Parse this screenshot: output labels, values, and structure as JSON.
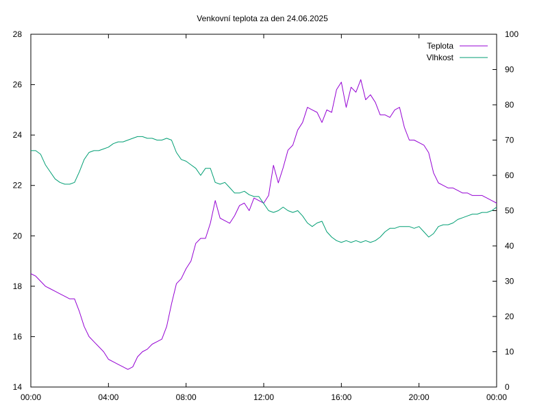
{
  "chart_data": {
    "type": "line",
    "title": "Venkovní teplota za den 24.06.2025",
    "x_ticks": [
      "00:00",
      "04:00",
      "08:00",
      "12:00",
      "16:00",
      "20:00",
      "00:00"
    ],
    "x_range_hours": [
      0,
      24
    ],
    "y_left": {
      "range": [
        14,
        28
      ],
      "ticks": [
        14,
        16,
        18,
        20,
        22,
        24,
        26,
        28
      ]
    },
    "y_right": {
      "range": [
        0,
        100
      ],
      "ticks": [
        0,
        10,
        20,
        30,
        40,
        50,
        60,
        70,
        80,
        90,
        100
      ]
    },
    "legend_position": "top-right",
    "grid": false,
    "series": [
      {
        "name": "Teplota",
        "axis": "left",
        "color": "#9400d3",
        "x": [
          0,
          0.25,
          0.5,
          0.75,
          1.0,
          1.25,
          1.5,
          1.75,
          2.0,
          2.25,
          2.5,
          2.75,
          3.0,
          3.25,
          3.5,
          3.75,
          4.0,
          4.25,
          4.5,
          4.75,
          5.0,
          5.25,
          5.5,
          5.75,
          6.0,
          6.25,
          6.5,
          6.75,
          7.0,
          7.25,
          7.5,
          7.75,
          8.0,
          8.25,
          8.5,
          8.75,
          9.0,
          9.25,
          9.5,
          9.75,
          10.0,
          10.25,
          10.5,
          10.75,
          11.0,
          11.25,
          11.5,
          11.75,
          12.0,
          12.25,
          12.5,
          12.75,
          13.0,
          13.25,
          13.5,
          13.75,
          14.0,
          14.25,
          14.5,
          14.75,
          15.0,
          15.25,
          15.5,
          15.75,
          16.0,
          16.25,
          16.5,
          16.75,
          17.0,
          17.25,
          17.5,
          17.75,
          18.0,
          18.25,
          18.5,
          18.75,
          19.0,
          19.25,
          19.5,
          19.75,
          20.0,
          20.25,
          20.5,
          20.75,
          21.0,
          21.25,
          21.5,
          21.75,
          22.0,
          22.25,
          22.5,
          22.75,
          23.0,
          23.25,
          23.5,
          23.75,
          24.0
        ],
        "values": [
          18.5,
          18.4,
          18.2,
          18.0,
          17.9,
          17.8,
          17.7,
          17.6,
          17.5,
          17.5,
          17.0,
          16.4,
          16.0,
          15.8,
          15.6,
          15.4,
          15.1,
          15.0,
          14.9,
          14.8,
          14.7,
          14.8,
          15.2,
          15.4,
          15.5,
          15.7,
          15.8,
          15.9,
          16.4,
          17.3,
          18.1,
          18.3,
          18.7,
          19.0,
          19.7,
          19.9,
          19.9,
          20.5,
          21.4,
          20.7,
          20.6,
          20.5,
          20.8,
          21.2,
          21.3,
          21.0,
          21.5,
          21.4,
          21.3,
          21.6,
          22.8,
          22.1,
          22.7,
          23.4,
          23.6,
          24.2,
          24.5,
          25.1,
          25.0,
          24.9,
          24.5,
          25.0,
          24.9,
          25.8,
          26.1,
          25.1,
          25.9,
          25.7,
          26.2,
          25.4,
          25.6,
          25.3,
          24.8,
          24.8,
          24.7,
          25.0,
          25.1,
          24.3,
          23.8,
          23.8,
          23.7,
          23.6,
          23.3,
          22.5,
          22.1,
          22.0,
          21.9,
          21.9,
          21.8,
          21.7,
          21.7,
          21.6,
          21.6,
          21.6,
          21.5,
          21.4,
          21.3
        ]
      },
      {
        "name": "Vlhkost",
        "axis": "right",
        "color": "#009e73",
        "x": [
          0,
          0.25,
          0.5,
          0.75,
          1.0,
          1.25,
          1.5,
          1.75,
          2.0,
          2.25,
          2.5,
          2.75,
          3.0,
          3.25,
          3.5,
          3.75,
          4.0,
          4.25,
          4.5,
          4.75,
          5.0,
          5.25,
          5.5,
          5.75,
          6.0,
          6.25,
          6.5,
          6.75,
          7.0,
          7.25,
          7.5,
          7.75,
          8.0,
          8.25,
          8.5,
          8.75,
          9.0,
          9.25,
          9.5,
          9.75,
          10.0,
          10.25,
          10.5,
          10.75,
          11.0,
          11.25,
          11.5,
          11.75,
          12.0,
          12.25,
          12.5,
          12.75,
          13.0,
          13.25,
          13.5,
          13.75,
          14.0,
          14.25,
          14.5,
          14.75,
          15.0,
          15.25,
          15.5,
          15.75,
          16.0,
          16.25,
          16.5,
          16.75,
          17.0,
          17.25,
          17.5,
          17.75,
          18.0,
          18.25,
          18.5,
          18.75,
          19.0,
          19.25,
          19.5,
          19.75,
          20.0,
          20.25,
          20.5,
          20.75,
          21.0,
          21.25,
          21.5,
          21.75,
          22.0,
          22.25,
          22.5,
          22.75,
          23.0,
          23.25,
          23.5,
          23.75,
          24.0
        ],
        "values": [
          67,
          67,
          66,
          63,
          61,
          59,
          58,
          57.5,
          57.5,
          58,
          61,
          64.5,
          66.5,
          67,
          67,
          67.5,
          68,
          69,
          69.5,
          69.5,
          70,
          70.5,
          71,
          71,
          70.5,
          70.5,
          70,
          70,
          70.5,
          70,
          66.5,
          64.5,
          64,
          63,
          62,
          60,
          62,
          62,
          58,
          57.5,
          58,
          56.5,
          55,
          55,
          55.5,
          54.5,
          54,
          54,
          52,
          50,
          49.5,
          50,
          51,
          50,
          49.5,
          50,
          48.5,
          46.5,
          45.5,
          46.5,
          47,
          44,
          42.5,
          41.5,
          41,
          41.5,
          41,
          41.5,
          41,
          41.5,
          41,
          41.5,
          42.5,
          44,
          45,
          45,
          45.5,
          45.5,
          45.5,
          45,
          45.5,
          44,
          42.5,
          43.5,
          45.5,
          46,
          46,
          46.5,
          47.5,
          48,
          48.5,
          49,
          49,
          49.5,
          49.5,
          50,
          51
        ]
      }
    ]
  }
}
